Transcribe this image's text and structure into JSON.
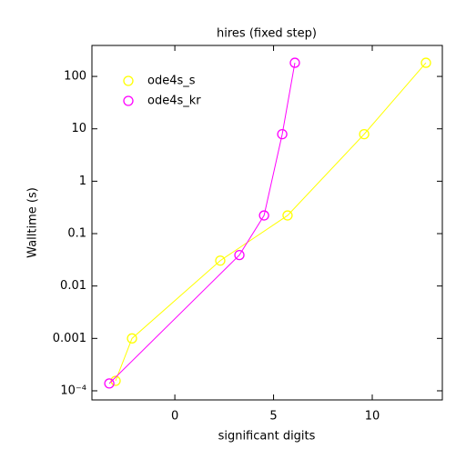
{
  "chart_data": {
    "type": "line",
    "title": "hires (fixed step)",
    "x_label": "significant digits",
    "y_label": "Walltime (s)",
    "log_y": true,
    "legend": "upper left",
    "xlim": [
      -4.2,
      13.55
    ],
    "xticks": [
      0,
      5,
      10
    ],
    "ylim": [
      6.7e-05,
      390
    ],
    "yticks": [
      100,
      10,
      1,
      0.1,
      0.01,
      0.001,
      {
        "value": 0.0001,
        "label": "10⁻⁴"
      }
    ],
    "series": [
      {
        "name": "ode4s_s",
        "color": "#ffff00",
        "x": [
          -3.0,
          -2.17,
          2.3,
          5.71,
          9.59,
          12.72
        ],
        "values": [
          0.000155,
          0.001,
          0.0305,
          0.222,
          7.9,
          182
        ]
      },
      {
        "name": "ode4s_kr",
        "color": "#ff00ff",
        "x": [
          -3.32,
          3.27,
          4.52,
          5.44,
          6.08
        ],
        "values": [
          0.000138,
          0.039,
          0.222,
          7.9,
          182
        ]
      }
    ]
  }
}
